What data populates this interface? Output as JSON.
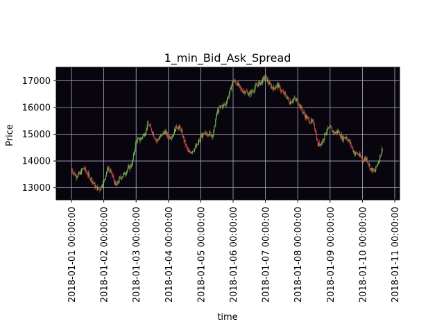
{
  "chart_data": {
    "type": "candlestick",
    "title": "1_min_Bid_Ask_Spread",
    "xlabel": "time",
    "ylabel": "Price",
    "xlim": [
      "2018-01-01",
      "2018-01-11"
    ],
    "ylim": [
      12550,
      17500
    ],
    "grid": true,
    "background": "#08050f",
    "grid_color": "#b4b0c8",
    "up_color": "#66cc55",
    "down_color": "#dd4444",
    "x_ticks": [
      "2018-01-01 00:00:00",
      "2018-01-02 00:00:00",
      "2018-01-03 00:00:00",
      "2018-01-04 00:00:00",
      "2018-01-05 00:00:00",
      "2018-01-06 00:00:00",
      "2018-01-07 00:00:00",
      "2018-01-08 00:00:00",
      "2018-01-09 00:00:00",
      "2018-01-10 00:00:00",
      "2018-01-11 00:00:00"
    ],
    "y_ticks": [
      "13000",
      "14000",
      "15000",
      "16000",
      "17000"
    ],
    "price_path": {
      "time": [
        "2018-01-01 00:00",
        "2018-01-01 03:00",
        "2018-01-01 06:00",
        "2018-01-01 09:00",
        "2018-01-01 12:00",
        "2018-01-01 15:00",
        "2018-01-01 18:00",
        "2018-01-01 21:00",
        "2018-01-02 00:00",
        "2018-01-02 03:00",
        "2018-01-02 06:00",
        "2018-01-02 09:00",
        "2018-01-02 12:00",
        "2018-01-02 15:00",
        "2018-01-02 18:00",
        "2018-01-02 21:00",
        "2018-01-03 00:00",
        "2018-01-03 03:00",
        "2018-01-03 06:00",
        "2018-01-03 09:00",
        "2018-01-03 12:00",
        "2018-01-03 15:00",
        "2018-01-03 18:00",
        "2018-01-03 21:00",
        "2018-01-04 00:00",
        "2018-01-04 03:00",
        "2018-01-04 06:00",
        "2018-01-04 09:00",
        "2018-01-04 12:00",
        "2018-01-04 15:00",
        "2018-01-04 18:00",
        "2018-01-04 21:00",
        "2018-01-05 00:00",
        "2018-01-05 03:00",
        "2018-01-05 06:00",
        "2018-01-05 09:00",
        "2018-01-05 12:00",
        "2018-01-05 15:00",
        "2018-01-05 18:00",
        "2018-01-05 21:00",
        "2018-01-06 00:00",
        "2018-01-06 03:00",
        "2018-01-06 06:00",
        "2018-01-06 09:00",
        "2018-01-06 12:00",
        "2018-01-06 15:00",
        "2018-01-06 18:00",
        "2018-01-06 21:00",
        "2018-01-07 00:00",
        "2018-01-07 03:00",
        "2018-01-07 06:00",
        "2018-01-07 09:00",
        "2018-01-07 12:00",
        "2018-01-07 15:00",
        "2018-01-07 18:00",
        "2018-01-07 21:00",
        "2018-01-08 00:00",
        "2018-01-08 03:00",
        "2018-01-08 06:00",
        "2018-01-08 09:00",
        "2018-01-08 12:00",
        "2018-01-08 15:00",
        "2018-01-08 18:00",
        "2018-01-08 21:00",
        "2018-01-09 00:00",
        "2018-01-09 03:00",
        "2018-01-09 06:00",
        "2018-01-09 09:00",
        "2018-01-09 12:00",
        "2018-01-09 15:00",
        "2018-01-09 18:00",
        "2018-01-09 21:00",
        "2018-01-10 00:00",
        "2018-01-10 03:00",
        "2018-01-10 06:00",
        "2018-01-10 09:00",
        "2018-01-10 12:00",
        "2018-01-10 15:00"
      ],
      "price": [
        13700,
        13450,
        13500,
        13750,
        13500,
        13300,
        13000,
        12950,
        13250,
        13750,
        13500,
        13050,
        13350,
        13500,
        13700,
        13900,
        14750,
        14800,
        15000,
        15400,
        15100,
        14750,
        14900,
        15100,
        14900,
        14950,
        15300,
        15200,
        14700,
        14300,
        14400,
        14550,
        14900,
        15000,
        15050,
        14950,
        15800,
        16050,
        16100,
        16500,
        17000,
        16900,
        16650,
        16600,
        16500,
        16650,
        16850,
        16950,
        17150,
        16850,
        16700,
        16850,
        16600,
        16450,
        16200,
        16300,
        16250,
        15900,
        15650,
        15500,
        15400,
        14600,
        14700,
        15100,
        15250,
        15050,
        15100,
        14850,
        14900,
        14650,
        14300,
        14250,
        14050,
        14100,
        13700,
        13600,
        14000,
        14500
      ]
    }
  }
}
